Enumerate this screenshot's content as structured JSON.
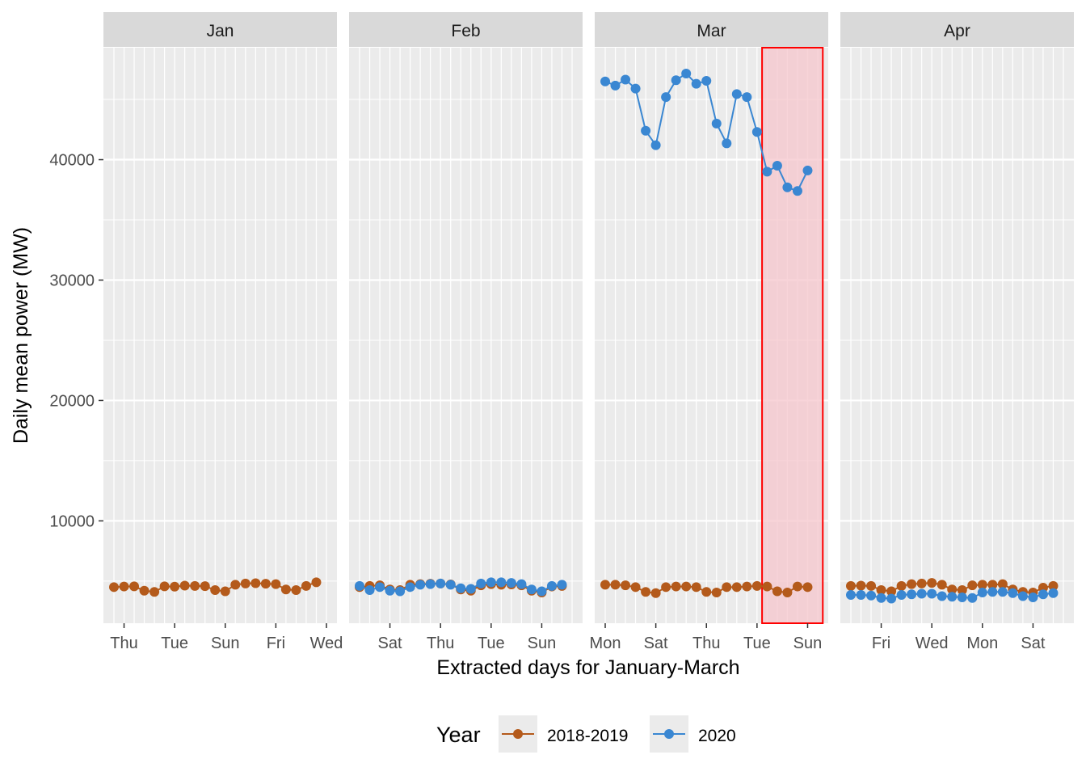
{
  "chart_data": {
    "type": "line",
    "xlabel": "Extracted days for January-March",
    "ylabel": "Daily mean power (MW)",
    "ylim": [
      1500,
      49300
    ],
    "y_ticks": [
      10000,
      20000,
      30000,
      40000
    ],
    "y_tick_labels": [
      "10000",
      "20000",
      "30000",
      "40000"
    ],
    "grid": true,
    "legend": {
      "title": "Year",
      "position": "bottom",
      "entries": [
        "2018-2019",
        "2020"
      ]
    },
    "colors": {
      "2018-2019": "#b45a1b",
      "2020": "#3a87d2",
      "highlight_fill": "#f6c6cc",
      "highlight_stroke": "#ff0000",
      "panel_bg": "#ebebeb",
      "strip_bg": "#d9d9d9"
    },
    "panels": [
      {
        "label": "Jan",
        "n_days": 22,
        "day_ticks": [
          1,
          6,
          11,
          16,
          21
        ],
        "tick_labels": [
          "Thu",
          "Tue",
          "Sun",
          "Fri",
          "Wed"
        ],
        "series": [
          {
            "name": "2018-2019",
            "values": [
              4500,
              4550,
              4560,
              4200,
              4100,
              4560,
              4540,
              4620,
              4600,
              4580,
              4250,
              4150,
              4700,
              4800,
              4820,
              4780,
              4750,
              4300,
              4250,
              4600,
              4900
            ]
          },
          {
            "name": "2020",
            "values": []
          }
        ]
      },
      {
        "label": "Feb",
        "n_days": 22,
        "day_ticks": [
          3,
          8,
          13,
          18
        ],
        "tick_labels": [
          "Sat",
          "Thu",
          "Tue",
          "Sun"
        ],
        "series": [
          {
            "name": "2018-2019",
            "values": [
              4500,
              4600,
              4650,
              4300,
              4250,
              4700,
              4750,
              4780,
              4800,
              4720,
              4300,
              4200,
              4650,
              4750,
              4700,
              4720,
              4650,
              4200,
              4050,
              4550,
              4600
            ]
          },
          {
            "name": "2020",
            "values": [
              4600,
              4250,
              4500,
              4200,
              4150,
              4500,
              4700,
              4750,
              4800,
              4700,
              4400,
              4350,
              4800,
              4900,
              4900,
              4850,
              4750,
              4300,
              4150,
              4600,
              4700
            ]
          }
        ]
      },
      {
        "label": "Mar",
        "n_days": 22,
        "day_ticks": [
          0,
          5,
          10,
          15,
          20
        ],
        "tick_labels": [
          "Mon",
          "Sat",
          "Thu",
          "Tue",
          "Sun"
        ],
        "highlight_days": [
          16,
          21
        ],
        "series": [
          {
            "name": "2018-2019",
            "values": [
              4700,
              4700,
              4650,
              4500,
              4100,
              4000,
              4500,
              4550,
              4550,
              4500,
              4100,
              4050,
              4500,
              4500,
              4550,
              4600,
              4550,
              4150,
              4050,
              4550,
              4500
            ]
          },
          {
            "name": "2020",
            "values": [
              46500,
              46150,
              46650,
              45900,
              42400,
              41200,
              45200,
              46600,
              47150,
              46300,
              46550,
              43000,
              41350,
              45450,
              45200,
              42300,
              39000,
              39500,
              37700,
              37400,
              39100
            ]
          }
        ]
      },
      {
        "label": "Apr",
        "n_days": 22,
        "day_ticks": [
          3,
          8,
          13,
          18
        ],
        "tick_labels": [
          "Fri",
          "Wed",
          "Mon",
          "Sat"
        ],
        "series": [
          {
            "name": "2018-2019",
            "values": [
              4600,
              4620,
              4600,
              4250,
              4150,
              4600,
              4750,
              4800,
              4850,
              4700,
              4300,
              4250,
              4650,
              4700,
              4700,
              4750,
              4300,
              4100,
              4050,
              4450,
              4600
            ]
          },
          {
            "name": "2020",
            "values": [
              3850,
              3850,
              3800,
              3600,
              3550,
              3850,
              3900,
              3950,
              3950,
              3750,
              3700,
              3650,
              3600,
              4050,
              4100,
              4100,
              4000,
              3750,
              3650,
              3900,
              4000
            ]
          }
        ]
      }
    ]
  }
}
